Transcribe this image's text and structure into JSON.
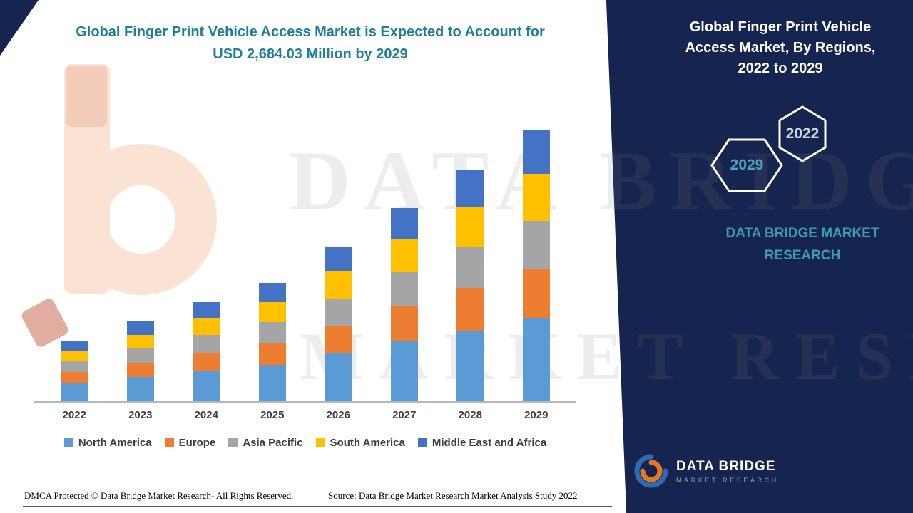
{
  "header": {
    "title_line1": "Global Finger Print Vehicle Access Market is Expected to Account for",
    "title_line2": "USD 2,684.03 Million by 2029"
  },
  "chart_data": {
    "type": "bar",
    "stacked": true,
    "title": "Global Finger Print Vehicle Access Market is Expected to Account for USD 2,684.03 Million by 2029",
    "unit": "USD Million",
    "categories": [
      "2022",
      "2023",
      "2024",
      "2025",
      "2026",
      "2027",
      "2028",
      "2029"
    ],
    "series": [
      {
        "name": "North America",
        "color": "#5B9BD5",
        "values": [
          180,
          240,
          300,
          360,
          470,
          590,
          700,
          820
        ]
      },
      {
        "name": "Europe",
        "color": "#ED7D31",
        "values": [
          110,
          145,
          180,
          215,
          280,
          350,
          420,
          490
        ]
      },
      {
        "name": "Asia Pacific",
        "color": "#A5A5A5",
        "values": [
          105,
          140,
          175,
          210,
          270,
          340,
          410,
          480
        ]
      },
      {
        "name": "South America",
        "color": "#FFC000",
        "values": [
          105,
          135,
          170,
          200,
          265,
          330,
          395,
          465
        ]
      },
      {
        "name": "Middle East and Africa",
        "color": "#4472C4",
        "values": [
          100,
          130,
          160,
          190,
          250,
          305,
          370,
          429.03
        ]
      }
    ],
    "totals": [
      600,
      790,
      985,
      1175,
      1535,
      1915,
      2295,
      2684.03
    ],
    "ylim": [
      0,
      2800
    ],
    "grid": false,
    "legend_position": "bottom"
  },
  "side_panel": {
    "title": "Global Finger Print Vehicle Access Market, By Regions, 2022 to 2029",
    "hexagon_back_label": "2022",
    "hexagon_front_label": "2029",
    "brand_text": "DATA BRIDGE MARKET RESEARCH",
    "logo_title": "DATA BRIDGE",
    "logo_subtitle": "MARKET RESEARCH"
  },
  "watermark": {
    "line1": "DATA BRIDGE",
    "line2": "MARKET RESEARCH"
  },
  "footer": {
    "dmca": "DMCA Protected © Data Bridge Market Research- All Rights Reserved.",
    "source": "Source: Data Bridge Market Research Market Analysis Study 2022"
  },
  "colors": {
    "panel_navy": "#16254F",
    "title_teal": "#1F7E98",
    "brand_teal": "#3D9CB2",
    "axis_text": "#404040",
    "axis_line": "#B7B7B7",
    "logo_orange": "#E87722",
    "logo_blue": "#2B6CB0"
  }
}
